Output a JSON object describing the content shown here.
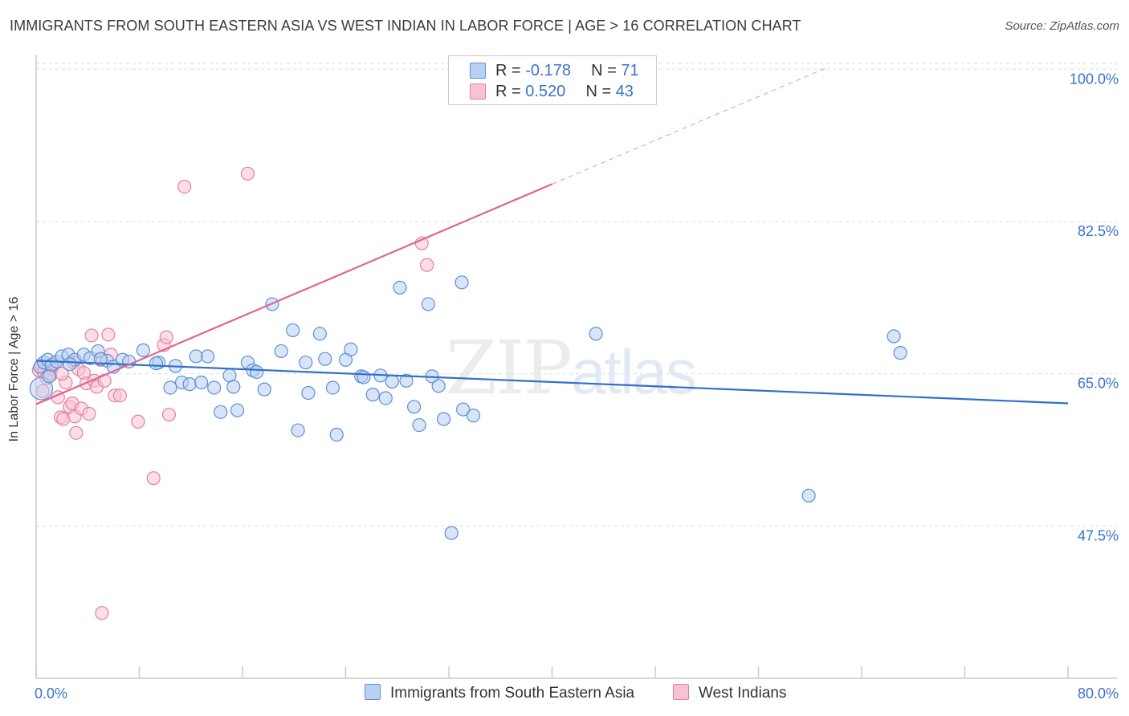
{
  "title": "IMMIGRANTS FROM SOUTH EASTERN ASIA VS WEST INDIAN IN LABOR FORCE | AGE > 16 CORRELATION CHART",
  "source": "Source: ZipAtlas.com",
  "watermark": {
    "zip": "ZIP",
    "atlas": "atlas"
  },
  "legend": {
    "blue": {
      "r_label": "R = ",
      "r_value": "-0.178",
      "n_label": "N = ",
      "n_value": "71"
    },
    "pink": {
      "r_label": "R = ",
      "r_value": "0.520",
      "n_label": "N = ",
      "n_value": "43"
    }
  },
  "colors": {
    "blue_fill": "#b8d0f2",
    "blue_stroke": "#5b8fd6",
    "blue_line": "#2f6fcc",
    "pink_fill": "#f7c3d2",
    "pink_stroke": "#e87ea0",
    "pink_line": "#e0658f",
    "tick_label": "#3a74c9",
    "grid": "#dddddd"
  },
  "chart_data": {
    "type": "scatter",
    "title": "IMMIGRANTS FROM SOUTH EASTERN ASIA VS WEST INDIAN IN LABOR FORCE | AGE > 16 CORRELATION CHART",
    "xlabel": "",
    "ylabel": "In Labor Force | Age > 16",
    "xlim": [
      0,
      80
    ],
    "ylim": [
      30,
      101.5
    ],
    "x_tick_labels": [
      "0.0%",
      "80.0%"
    ],
    "y_ticks": [
      47.5,
      65.0,
      82.5,
      100.0
    ],
    "y_tick_labels": [
      "47.5%",
      "65.0%",
      "82.5%",
      "100.0%"
    ],
    "series": [
      {
        "name": "Immigrants from South Eastern Asia",
        "color": "blue",
        "trend": {
          "x0": 0,
          "y0": 66.5,
          "x1": 80,
          "y1": 61.6
        },
        "points": [
          [
            0.3,
            65.8
          ],
          [
            0.6,
            66.3
          ],
          [
            0.9,
            66.6
          ],
          [
            1.2,
            66.0
          ],
          [
            1.6,
            66.4
          ],
          [
            2.0,
            67.0
          ],
          [
            2.5,
            67.2
          ],
          [
            3.0,
            66.6
          ],
          [
            3.7,
            67.2
          ],
          [
            4.2,
            66.8
          ],
          [
            4.8,
            67.6
          ],
          [
            5.5,
            66.5
          ],
          [
            6.0,
            65.8
          ],
          [
            6.7,
            66.6
          ],
          [
            7.2,
            66.4
          ],
          [
            8.3,
            67.7
          ],
          [
            9.5,
            66.3
          ],
          [
            10.4,
            63.4
          ],
          [
            10.8,
            65.9
          ],
          [
            11.3,
            64.0
          ],
          [
            11.9,
            63.8
          ],
          [
            12.4,
            67.0
          ],
          [
            12.8,
            64.0
          ],
          [
            13.3,
            67.0
          ],
          [
            13.8,
            63.4
          ],
          [
            14.3,
            60.6
          ],
          [
            15.0,
            64.8
          ],
          [
            15.3,
            63.5
          ],
          [
            15.6,
            60.8
          ],
          [
            16.4,
            66.3
          ],
          [
            16.8,
            65.4
          ],
          [
            17.1,
            65.2
          ],
          [
            17.7,
            63.2
          ],
          [
            18.3,
            73.0
          ],
          [
            19.0,
            67.6
          ],
          [
            19.9,
            70.0
          ],
          [
            20.3,
            58.5
          ],
          [
            20.9,
            66.3
          ],
          [
            21.1,
            62.8
          ],
          [
            22.0,
            69.6
          ],
          [
            22.4,
            66.7
          ],
          [
            23.0,
            63.4
          ],
          [
            23.3,
            58.0
          ],
          [
            24.0,
            66.6
          ],
          [
            24.4,
            67.8
          ],
          [
            25.2,
            64.7
          ],
          [
            25.4,
            64.6
          ],
          [
            26.1,
            62.6
          ],
          [
            26.7,
            64.8
          ],
          [
            27.1,
            62.2
          ],
          [
            27.6,
            64.1
          ],
          [
            28.2,
            74.9
          ],
          [
            28.7,
            64.2
          ],
          [
            29.3,
            61.2
          ],
          [
            29.7,
            59.1
          ],
          [
            30.4,
            73.0
          ],
          [
            30.7,
            64.7
          ],
          [
            31.2,
            63.6
          ],
          [
            31.6,
            59.8
          ],
          [
            32.2,
            46.7
          ],
          [
            33.0,
            75.5
          ],
          [
            33.1,
            60.9
          ],
          [
            33.9,
            60.2
          ],
          [
            43.4,
            69.6
          ],
          [
            59.9,
            51.0
          ],
          [
            66.5,
            69.3
          ],
          [
            67.0,
            67.4
          ],
          [
            1.0,
            64.7
          ],
          [
            2.6,
            66.1
          ],
          [
            5.0,
            66.7
          ],
          [
            9.3,
            66.2
          ]
        ]
      },
      {
        "name": "West Indians",
        "color": "pink",
        "trend": {
          "x0": 0,
          "y0": 61.5,
          "x1": 40,
          "y1": 86.8,
          "dash_to_x": 61.5,
          "dash_to_y": 100.3
        },
        "points": [
          [
            0.2,
            65.4
          ],
          [
            0.4,
            66.0
          ],
          [
            0.6,
            65.2
          ],
          [
            0.8,
            64.5
          ],
          [
            1.0,
            65.8
          ],
          [
            1.2,
            65.6
          ],
          [
            1.4,
            66.2
          ],
          [
            1.7,
            62.3
          ],
          [
            1.9,
            60.0
          ],
          [
            2.1,
            59.8
          ],
          [
            2.3,
            64.0
          ],
          [
            2.6,
            61.2
          ],
          [
            2.8,
            61.6
          ],
          [
            2.9,
            66.3
          ],
          [
            3.0,
            60.1
          ],
          [
            3.1,
            58.2
          ],
          [
            3.3,
            65.5
          ],
          [
            3.5,
            61.0
          ],
          [
            3.7,
            65.1
          ],
          [
            3.9,
            63.9
          ],
          [
            4.1,
            60.4
          ],
          [
            4.3,
            69.4
          ],
          [
            4.5,
            64.2
          ],
          [
            4.7,
            63.5
          ],
          [
            5.0,
            66.6
          ],
          [
            5.1,
            37.5
          ],
          [
            5.3,
            64.2
          ],
          [
            5.6,
            69.5
          ],
          [
            5.8,
            67.2
          ],
          [
            6.1,
            62.5
          ],
          [
            6.5,
            62.5
          ],
          [
            7.9,
            59.5
          ],
          [
            9.1,
            53.0
          ],
          [
            9.9,
            68.3
          ],
          [
            10.1,
            69.2
          ],
          [
            10.3,
            60.3
          ],
          [
            11.5,
            86.5
          ],
          [
            16.4,
            88.0
          ],
          [
            29.9,
            80.0
          ],
          [
            30.3,
            77.5
          ],
          [
            0.5,
            63.0
          ],
          [
            1.1,
            64.8
          ],
          [
            2.0,
            65.0
          ]
        ]
      }
    ]
  },
  "bottom_legend": {
    "blue_label": "Immigrants from South Eastern Asia",
    "pink_label": "West Indians"
  }
}
